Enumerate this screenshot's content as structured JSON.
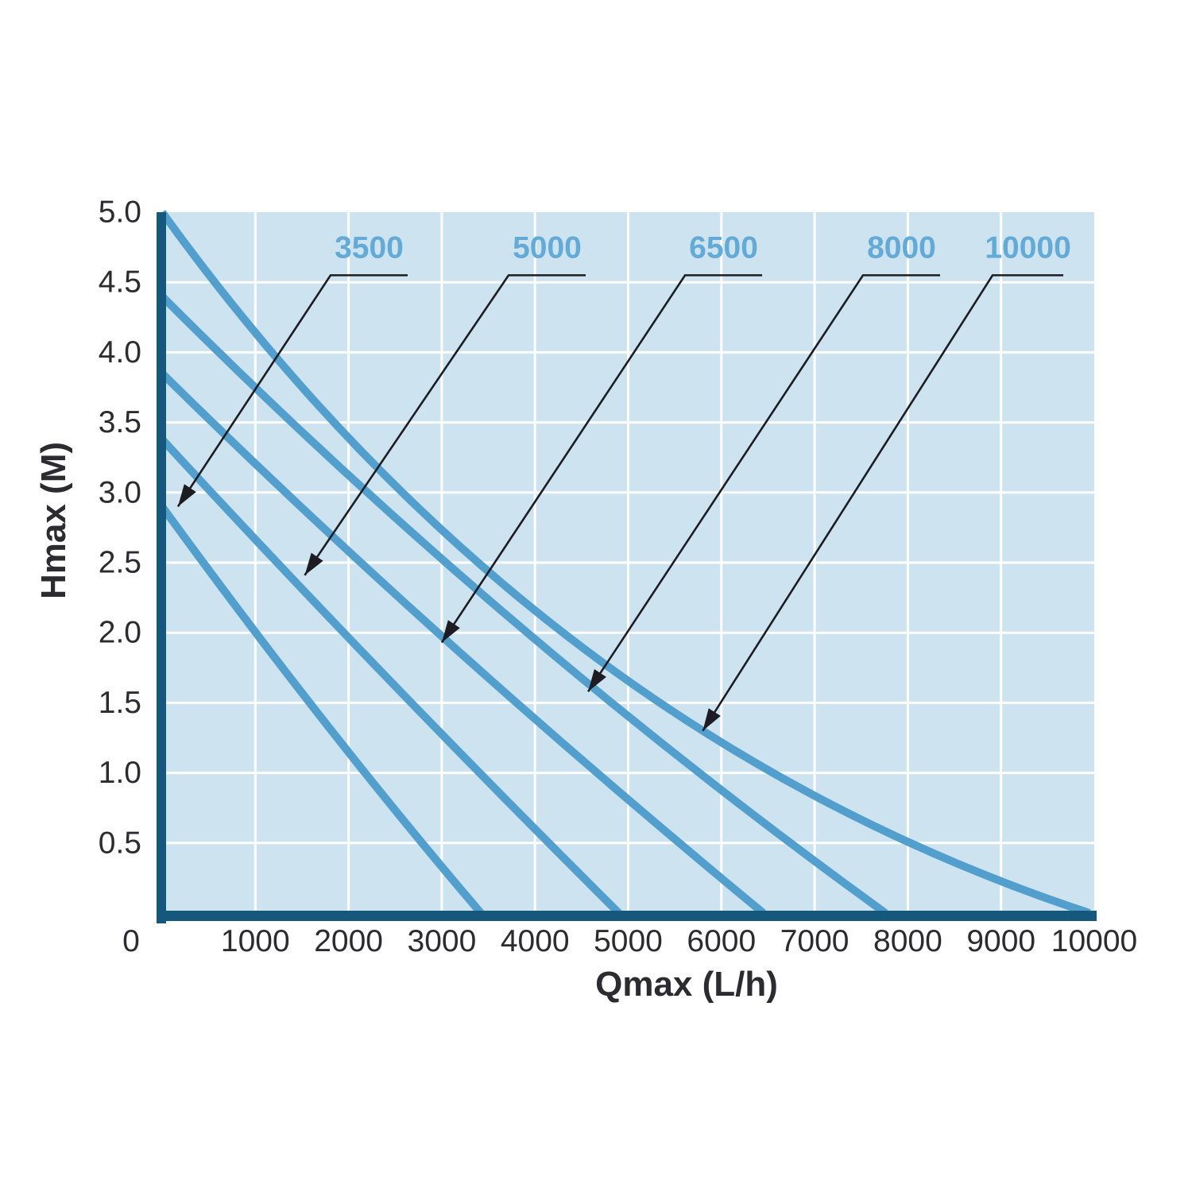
{
  "chart_data": {
    "type": "line",
    "title": "",
    "xlabel": "Qmax (L/h)",
    "ylabel": "Hmax (M)",
    "xlim": [
      0,
      10000
    ],
    "ylim": [
      0,
      5
    ],
    "grid": true,
    "legend_position": "none",
    "x_ticks": [
      0,
      1000,
      2000,
      3000,
      4000,
      5000,
      6000,
      7000,
      8000,
      9000,
      10000
    ],
    "x_tick_labels": [
      "0",
      "1000",
      "2000",
      "3000",
      "4000",
      "5000",
      "6000",
      "7000",
      "8000",
      "9000",
      "10000"
    ],
    "y_ticks": [
      0.5,
      1.0,
      1.5,
      2.0,
      2.5,
      3.0,
      3.5,
      4.0,
      4.5,
      5.0
    ],
    "y_tick_labels": [
      "0.5",
      "1.0",
      "1.5",
      "2.0",
      "2.5",
      "3.0",
      "3.5",
      "4.0",
      "4.5",
      "5.0"
    ],
    "series": [
      {
        "name": "3500",
        "hmax": 2.9,
        "qmax": 3420,
        "ctrl": [
          1750,
          1.3
        ],
        "points": [
          [
            0,
            2.9
          ],
          [
            870,
            2.11
          ],
          [
            1730,
            1.37
          ],
          [
            2580,
            0.67
          ],
          [
            3420,
            0
          ]
        ]
      },
      {
        "name": "5000",
        "hmax": 3.38,
        "qmax": 4900,
        "ctrl": [
          2300,
          1.72
        ],
        "points": [
          [
            0,
            3.38
          ],
          [
            1170,
            2.55
          ],
          [
            2380,
            1.71
          ],
          [
            3620,
            0.86
          ],
          [
            4900,
            0
          ]
        ]
      },
      {
        "name": "6500",
        "hmax": 3.85,
        "qmax": 6450,
        "ctrl": [
          2900,
          1.95
        ],
        "points": [
          [
            0,
            3.85
          ],
          [
            1490,
            2.9
          ],
          [
            3060,
            1.94
          ],
          [
            4720,
            0.97
          ],
          [
            6450,
            0
          ]
        ]
      },
      {
        "name": "8000",
        "hmax": 4.4,
        "qmax": 7760,
        "ctrl": [
          3600,
          2.0
        ],
        "points": [
          [
            0,
            4.4
          ],
          [
            1840,
            3.23
          ],
          [
            3740,
            2.1
          ],
          [
            5720,
            1.03
          ],
          [
            7760,
            0
          ]
        ]
      },
      {
        "name": "10000",
        "hmax": 5.0,
        "qmax": 9950,
        "ctrl": [
          4020,
          1.3
        ],
        "points": [
          [
            0,
            5.0
          ],
          [
            2130,
            3.3
          ],
          [
            4500,
            1.9
          ],
          [
            7110,
            0.8
          ],
          [
            9950,
            0
          ]
        ]
      }
    ],
    "annotations": {
      "leader_h": 4.55,
      "items": [
        {
          "label": "3500",
          "line_q_start": 1807,
          "line_q_end": 2634,
          "tip_q": 170,
          "tip_h": 2.9
        },
        {
          "label": "5000",
          "line_q_start": 3717,
          "line_q_end": 4544,
          "tip_q": 1530,
          "tip_h": 2.41
        },
        {
          "label": "6500",
          "line_q_start": 5610,
          "line_q_end": 6437,
          "tip_q": 3000,
          "tip_h": 1.93
        },
        {
          "label": "8000",
          "line_q_start": 7519,
          "line_q_end": 8346,
          "tip_q": 4570,
          "tip_h": 1.58
        },
        {
          "label": "10000",
          "line_q_start": 8909,
          "line_q_end": 9668,
          "tip_q": 5800,
          "tip_h": 1.3
        }
      ]
    }
  },
  "style": {
    "page_bg": "#ffffff",
    "plot_bg": "#cde3f0",
    "gridline": "#ffffff",
    "curve": "#529fcd",
    "series_label": "#63aad6",
    "axis_bar": "#16587b",
    "text": "#2b2b30",
    "arrow": "#1c1c22"
  }
}
